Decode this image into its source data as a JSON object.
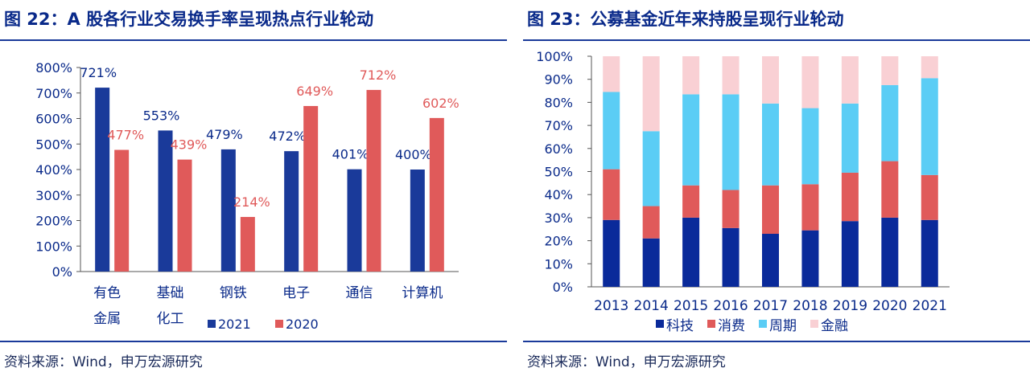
{
  "left": {
    "title": "图 22：A 股各行业交易换手率呈现热点行业轮动",
    "source": "资料来源：Wind，申万宏源研究"
  },
  "right": {
    "title": "图 23：公募基金近年来持股呈现行业轮动",
    "source": "资料来源：Wind，申万宏源研究"
  },
  "chart_data": [
    {
      "type": "bar",
      "categories": [
        [
          "有色",
          "金属"
        ],
        [
          "基础",
          "化工"
        ],
        [
          "钢铁"
        ],
        [
          "电子"
        ],
        [
          "通信"
        ],
        [
          "计算机"
        ]
      ],
      "series": [
        {
          "name": "2021",
          "color": "#1a3a9a",
          "label_color": "#0a2a8a",
          "values": [
            721,
            553,
            479,
            472,
            401,
            400
          ],
          "labels": [
            "721%",
            "553%",
            "479%",
            "472%",
            "401%",
            "400%"
          ]
        },
        {
          "name": "2020",
          "color": "#e05a5a",
          "label_color": "#e05a5a",
          "values": [
            477,
            439,
            214,
            649,
            712,
            602
          ],
          "labels": [
            "477%",
            "439%",
            "214%",
            "649%",
            "712%",
            "602%"
          ]
        }
      ],
      "ylim": [
        0,
        800
      ],
      "yticks": [
        "0%",
        "100%",
        "200%",
        "300%",
        "400%",
        "500%",
        "600%",
        "700%",
        "800%"
      ],
      "legend_position": "bottom-right"
    },
    {
      "type": "bar",
      "stacked": true,
      "categories": [
        "2013",
        "2014",
        "2015",
        "2016",
        "2017",
        "2018",
        "2019",
        "2020",
        "2021"
      ],
      "series": [
        {
          "name": "科技",
          "color": "#0a2a9a",
          "values": [
            29,
            21,
            30,
            25.5,
            23,
            24.5,
            28.5,
            30,
            29
          ]
        },
        {
          "name": "消费",
          "color": "#e05a5a",
          "values": [
            22,
            14,
            14,
            16.5,
            21,
            20,
            21,
            24.5,
            19.5
          ]
        },
        {
          "name": "周期",
          "color": "#5bcdf5",
          "values": [
            33.5,
            32.5,
            39.5,
            41.5,
            35.5,
            33,
            30,
            33,
            42
          ]
        },
        {
          "name": "金融",
          "color": "#f9d0d4",
          "values": [
            15.5,
            32.5,
            16.5,
            16.5,
            20.5,
            22.5,
            20.5,
            12.5,
            9.5
          ]
        }
      ],
      "ylim": [
        0,
        100
      ],
      "yticks": [
        "0%",
        "10%",
        "20%",
        "30%",
        "40%",
        "50%",
        "60%",
        "70%",
        "80%",
        "90%",
        "100%"
      ],
      "legend_position": "bottom"
    }
  ]
}
